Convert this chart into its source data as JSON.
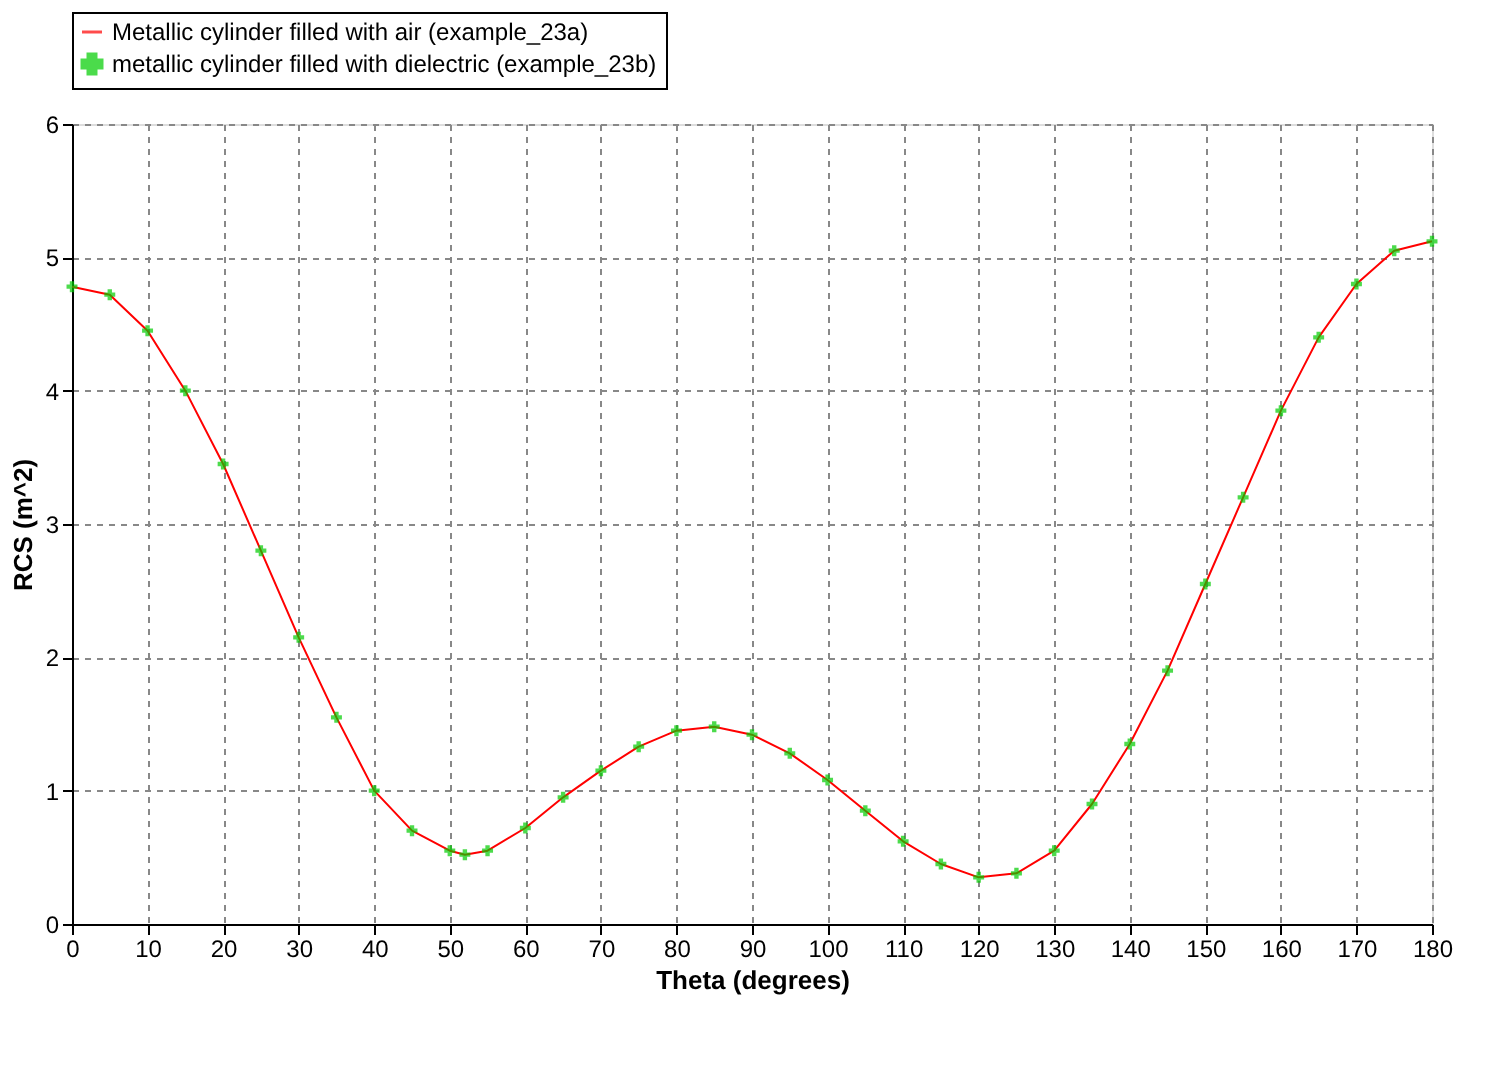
{
  "chart_data": {
    "type": "line",
    "xlabel": "Theta  (degrees)",
    "ylabel": "RCS  (m^2)",
    "x": [
      0,
      5,
      10,
      15,
      20,
      25,
      30,
      35,
      40,
      45,
      50,
      52,
      55,
      60,
      65,
      70,
      75,
      80,
      85,
      90,
      95,
      100,
      105,
      110,
      115,
      120,
      125,
      130,
      135,
      140,
      145,
      150,
      155,
      160,
      165,
      170,
      175,
      180
    ],
    "series": [
      {
        "name": "Metallic cylinder filled with air (example_23a)",
        "color": "#ff0000",
        "marker": "none",
        "line_style": "solid",
        "values": [
          4.78,
          4.72,
          4.45,
          4.0,
          3.45,
          2.8,
          2.15,
          1.55,
          1.0,
          0.7,
          0.55,
          0.52,
          0.55,
          0.72,
          0.95,
          1.15,
          1.33,
          1.45,
          1.48,
          1.42,
          1.28,
          1.08,
          0.85,
          0.62,
          0.45,
          0.35,
          0.38,
          0.55,
          0.9,
          1.35,
          1.9,
          2.55,
          3.2,
          3.85,
          4.4,
          4.8,
          5.05,
          5.12
        ]
      },
      {
        "name": "metallic cylinder filled with dielectric (example_23b)",
        "color": "#00cc00",
        "type": "scatter",
        "marker": "cross",
        "values": [
          4.78,
          4.72,
          4.45,
          4.0,
          3.45,
          2.8,
          2.15,
          1.55,
          1.0,
          0.7,
          0.55,
          0.52,
          0.55,
          0.72,
          0.95,
          1.15,
          1.33,
          1.45,
          1.48,
          1.42,
          1.28,
          1.08,
          0.85,
          0.62,
          0.45,
          0.35,
          0.38,
          0.55,
          0.9,
          1.35,
          1.9,
          2.55,
          3.2,
          3.85,
          4.4,
          4.8,
          5.05,
          5.12
        ]
      }
    ],
    "xlim": [
      0,
      180
    ],
    "xticks": [
      0,
      10,
      20,
      30,
      40,
      50,
      60,
      70,
      80,
      90,
      100,
      110,
      120,
      130,
      140,
      150,
      160,
      170,
      180
    ],
    "ylim": [
      0,
      6
    ],
    "yticks": [
      0,
      1,
      2,
      3,
      4,
      5,
      6
    ],
    "grid": true,
    "legend": "top"
  }
}
